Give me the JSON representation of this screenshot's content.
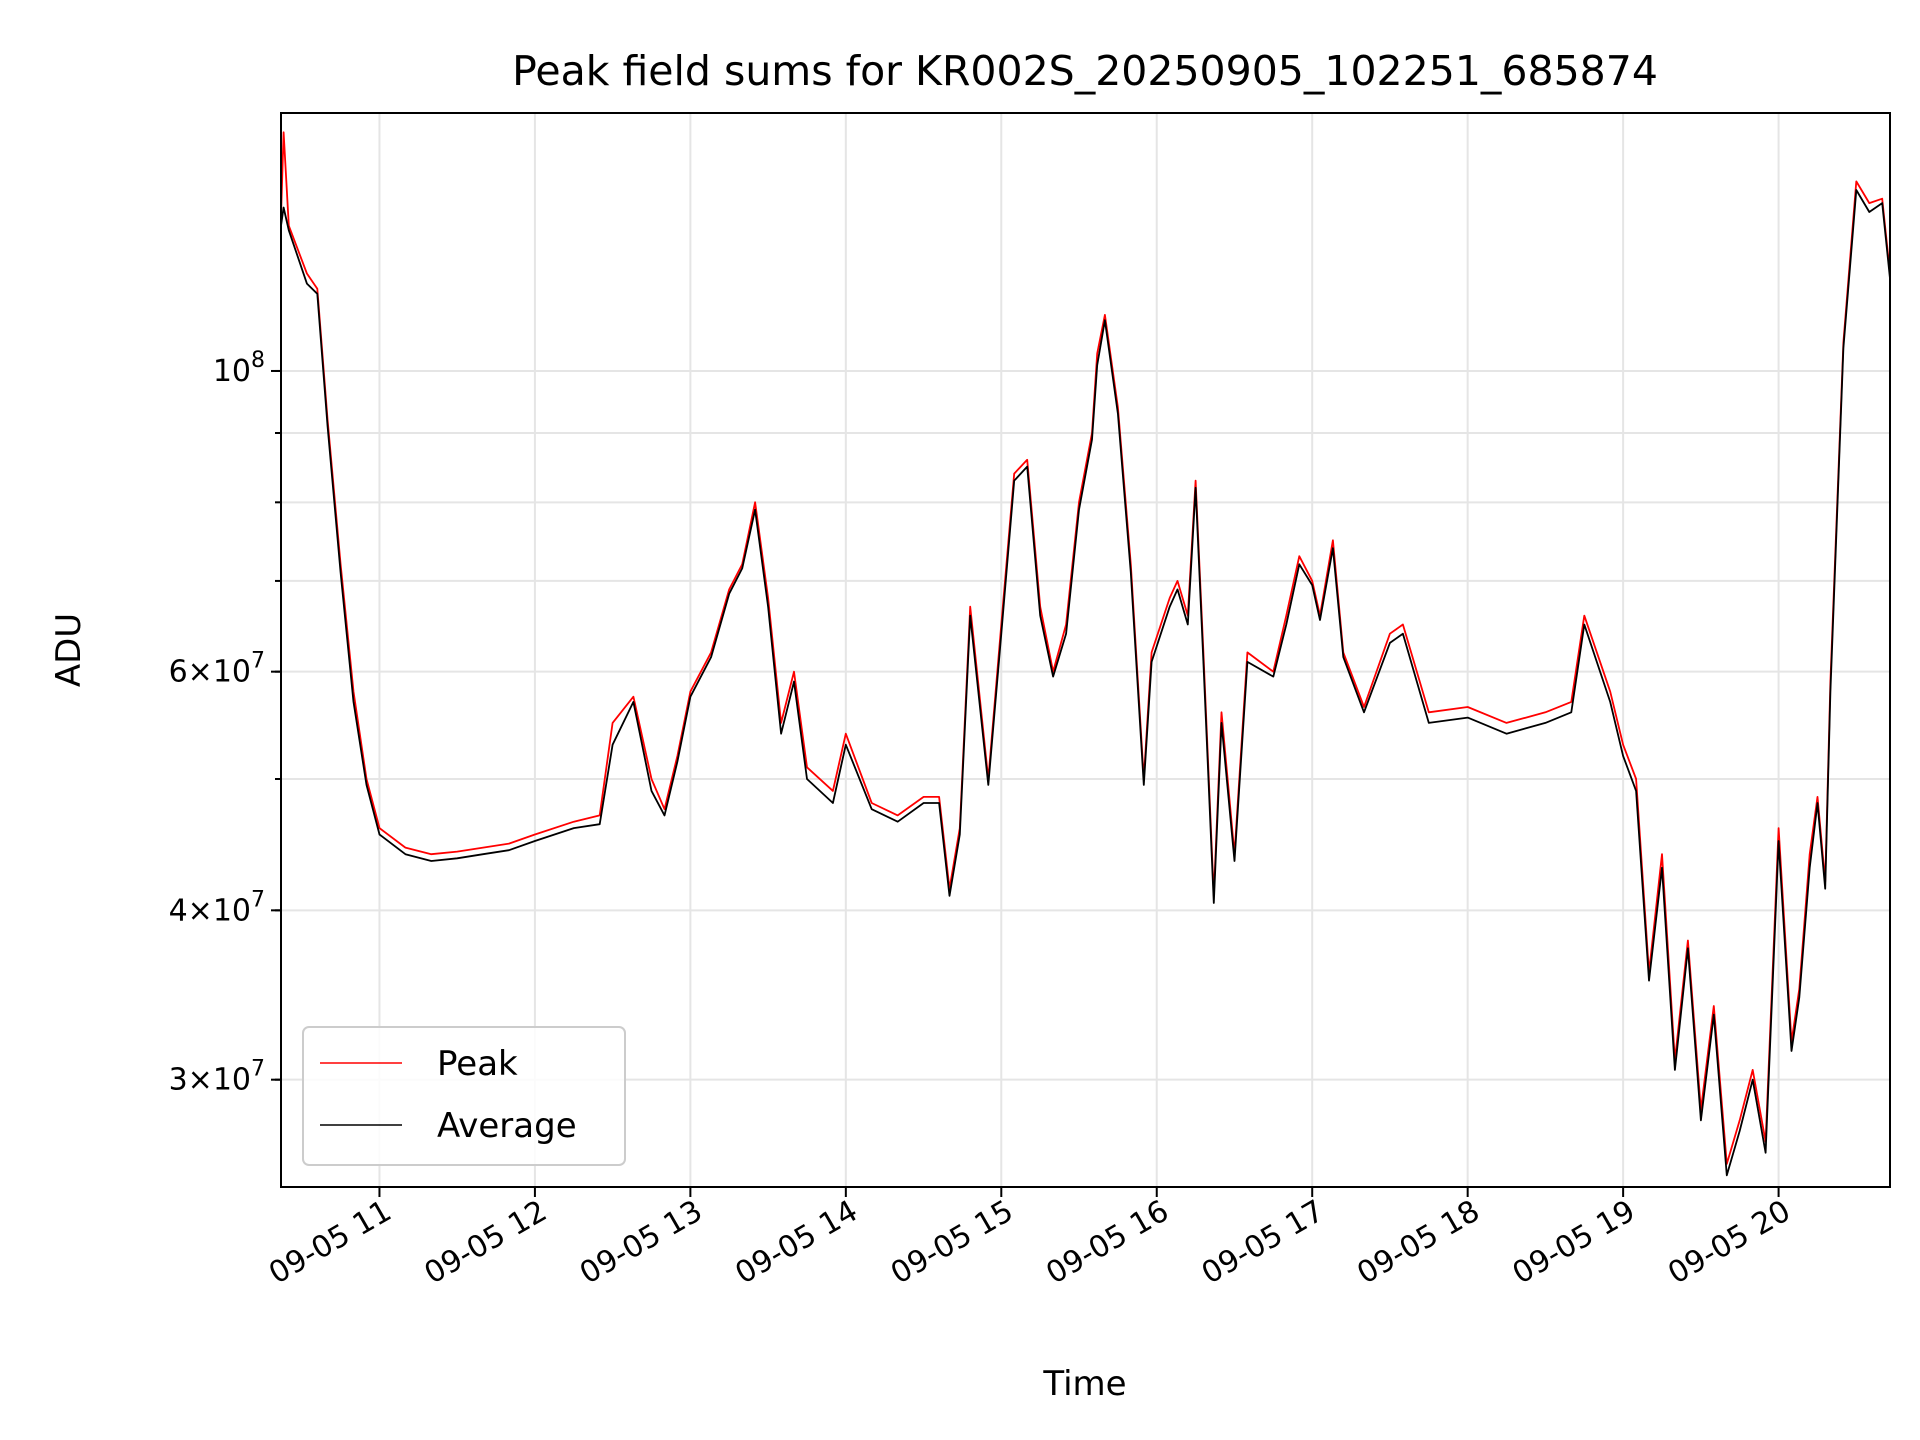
{
  "chart_data": {
    "type": "line",
    "title": "Peak field sums for KR002S_20250905_102251_685874",
    "xlabel": "Time",
    "ylabel": "ADU",
    "y_scale": "log",
    "ylim": [
      25000000,
      155000000
    ],
    "xlim": [
      "2025-09-05 10:22",
      "2025-09-05 20:43"
    ],
    "grid": true,
    "legend_position": "lower-left",
    "x_ticks": [
      {
        "t": "2025-09-05 11:00",
        "label": "09-05 11"
      },
      {
        "t": "2025-09-05 12:00",
        "label": "09-05 12"
      },
      {
        "t": "2025-09-05 13:00",
        "label": "09-05 13"
      },
      {
        "t": "2025-09-05 14:00",
        "label": "09-05 14"
      },
      {
        "t": "2025-09-05 15:00",
        "label": "09-05 15"
      },
      {
        "t": "2025-09-05 16:00",
        "label": "09-05 16"
      },
      {
        "t": "2025-09-05 17:00",
        "label": "09-05 17"
      },
      {
        "t": "2025-09-05 18:00",
        "label": "09-05 18"
      },
      {
        "t": "2025-09-05 19:00",
        "label": "09-05 19"
      },
      {
        "t": "2025-09-05 20:00",
        "label": "09-05 20"
      }
    ],
    "y_ticks": [
      {
        "value": 100000000,
        "base": "10",
        "exp": "8"
      },
      {
        "value": 60000000,
        "mant": "6",
        "base": "10",
        "exp": "7"
      },
      {
        "value": 40000000,
        "mant": "4",
        "base": "10",
        "exp": "7"
      },
      {
        "value": 30000000,
        "mant": "3",
        "base": "10",
        "exp": "7"
      }
    ],
    "series": [
      {
        "name": "Peak",
        "color": "#ff0000",
        "x": [
          "2025-09-05 10:22",
          "2025-09-05 10:23",
          "2025-09-05 10:25",
          "2025-09-05 10:32",
          "2025-09-05 10:36",
          "2025-09-05 10:40",
          "2025-09-05 10:45",
          "2025-09-05 10:50",
          "2025-09-05 10:55",
          "2025-09-05 11:00",
          "2025-09-05 11:10",
          "2025-09-05 11:20",
          "2025-09-05 11:30",
          "2025-09-05 11:40",
          "2025-09-05 11:50",
          "2025-09-05 12:00",
          "2025-09-05 12:15",
          "2025-09-05 12:25",
          "2025-09-05 12:30",
          "2025-09-05 12:38",
          "2025-09-05 12:45",
          "2025-09-05 12:50",
          "2025-09-05 12:55",
          "2025-09-05 13:00",
          "2025-09-05 13:08",
          "2025-09-05 13:15",
          "2025-09-05 13:20",
          "2025-09-05 13:25",
          "2025-09-05 13:30",
          "2025-09-05 13:35",
          "2025-09-05 13:40",
          "2025-09-05 13:45",
          "2025-09-05 13:55",
          "2025-09-05 14:00",
          "2025-09-05 14:10",
          "2025-09-05 14:20",
          "2025-09-05 14:30",
          "2025-09-05 14:36",
          "2025-09-05 14:40",
          "2025-09-05 14:44",
          "2025-09-05 14:48",
          "2025-09-05 14:55",
          "2025-09-05 15:00",
          "2025-09-05 15:05",
          "2025-09-05 15:10",
          "2025-09-05 15:15",
          "2025-09-05 15:20",
          "2025-09-05 15:25",
          "2025-09-05 15:30",
          "2025-09-05 15:35",
          "2025-09-05 15:37",
          "2025-09-05 15:40",
          "2025-09-05 15:45",
          "2025-09-05 15:50",
          "2025-09-05 15:55",
          "2025-09-05 15:58",
          "2025-09-05 16:05",
          "2025-09-05 16:08",
          "2025-09-05 16:12",
          "2025-09-05 16:15",
          "2025-09-05 16:18",
          "2025-09-05 16:22",
          "2025-09-05 16:25",
          "2025-09-05 16:30",
          "2025-09-05 16:35",
          "2025-09-05 16:45",
          "2025-09-05 16:50",
          "2025-09-05 16:55",
          "2025-09-05 17:00",
          "2025-09-05 17:03",
          "2025-09-05 17:08",
          "2025-09-05 17:12",
          "2025-09-05 17:20",
          "2025-09-05 17:30",
          "2025-09-05 17:35",
          "2025-09-05 17:45",
          "2025-09-05 18:00",
          "2025-09-05 18:15",
          "2025-09-05 18:30",
          "2025-09-05 18:40",
          "2025-09-05 18:45",
          "2025-09-05 18:55",
          "2025-09-05 19:00",
          "2025-09-05 19:05",
          "2025-09-05 19:10",
          "2025-09-05 19:15",
          "2025-09-05 19:20",
          "2025-09-05 19:25",
          "2025-09-05 19:30",
          "2025-09-05 19:35",
          "2025-09-05 19:40",
          "2025-09-05 19:45",
          "2025-09-05 19:50",
          "2025-09-05 19:55",
          "2025-09-05 20:00",
          "2025-09-05 20:05",
          "2025-09-05 20:08",
          "2025-09-05 20:12",
          "2025-09-05 20:15",
          "2025-09-05 20:18",
          "2025-09-05 20:20",
          "2025-09-05 20:25",
          "2025-09-05 20:30",
          "2025-09-05 20:35",
          "2025-09-05 20:40",
          "2025-09-05 20:43"
        ],
        "values": [
          130000000,
          150000000,
          128000000,
          118000000,
          115000000,
          92000000,
          72000000,
          58000000,
          50000000,
          46000000,
          44500000,
          44000000,
          44200000,
          44500000,
          44800000,
          45500000,
          46500000,
          47000000,
          55000000,
          57500000,
          50000000,
          47500000,
          52000000,
          58000000,
          62000000,
          69000000,
          72000000,
          80000000,
          68000000,
          55000000,
          60000000,
          51000000,
          49000000,
          54000000,
          48000000,
          47000000,
          48500000,
          48500000,
          41500000,
          46000000,
          67000000,
          50000000,
          65000000,
          84000000,
          86000000,
          67000000,
          60000000,
          65000000,
          80000000,
          90000000,
          103000000,
          110000000,
          94000000,
          72000000,
          50000000,
          62000000,
          68000000,
          70000000,
          66000000,
          83000000,
          62000000,
          41000000,
          56000000,
          44000000,
          62000000,
          60000000,
          66000000,
          73000000,
          70000000,
          66000000,
          75000000,
          62000000,
          56500000,
          64000000,
          65000000,
          56000000,
          56500000,
          55000000,
          56000000,
          57000000,
          66000000,
          58000000,
          53000000,
          50000000,
          36000000,
          44000000,
          31000000,
          38000000,
          28500000,
          34000000,
          26000000,
          28000000,
          30500000,
          27000000,
          46000000,
          32000000,
          35000000,
          44000000,
          48500000,
          42000000,
          59000000,
          105000000,
          138000000,
          133000000,
          134000000,
          118000000
        ]
      },
      {
        "name": "Average",
        "color": "#000000",
        "x": [
          "2025-09-05 10:22",
          "2025-09-05 10:23",
          "2025-09-05 10:25",
          "2025-09-05 10:32",
          "2025-09-05 10:36",
          "2025-09-05 10:40",
          "2025-09-05 10:45",
          "2025-09-05 10:50",
          "2025-09-05 10:55",
          "2025-09-05 11:00",
          "2025-09-05 11:10",
          "2025-09-05 11:20",
          "2025-09-05 11:30",
          "2025-09-05 11:40",
          "2025-09-05 11:50",
          "2025-09-05 12:00",
          "2025-09-05 12:15",
          "2025-09-05 12:25",
          "2025-09-05 12:30",
          "2025-09-05 12:38",
          "2025-09-05 12:45",
          "2025-09-05 12:50",
          "2025-09-05 12:55",
          "2025-09-05 13:00",
          "2025-09-05 13:08",
          "2025-09-05 13:15",
          "2025-09-05 13:20",
          "2025-09-05 13:25",
          "2025-09-05 13:30",
          "2025-09-05 13:35",
          "2025-09-05 13:40",
          "2025-09-05 13:45",
          "2025-09-05 13:55",
          "2025-09-05 14:00",
          "2025-09-05 14:10",
          "2025-09-05 14:20",
          "2025-09-05 14:30",
          "2025-09-05 14:36",
          "2025-09-05 14:40",
          "2025-09-05 14:44",
          "2025-09-05 14:48",
          "2025-09-05 14:55",
          "2025-09-05 15:00",
          "2025-09-05 15:05",
          "2025-09-05 15:10",
          "2025-09-05 15:15",
          "2025-09-05 15:20",
          "2025-09-05 15:25",
          "2025-09-05 15:30",
          "2025-09-05 15:35",
          "2025-09-05 15:37",
          "2025-09-05 15:40",
          "2025-09-05 15:45",
          "2025-09-05 15:50",
          "2025-09-05 15:55",
          "2025-09-05 15:58",
          "2025-09-05 16:05",
          "2025-09-05 16:08",
          "2025-09-05 16:12",
          "2025-09-05 16:15",
          "2025-09-05 16:18",
          "2025-09-05 16:22",
          "2025-09-05 16:25",
          "2025-09-05 16:30",
          "2025-09-05 16:35",
          "2025-09-05 16:45",
          "2025-09-05 16:50",
          "2025-09-05 16:55",
          "2025-09-05 17:00",
          "2025-09-05 17:03",
          "2025-09-05 17:08",
          "2025-09-05 17:12",
          "2025-09-05 17:20",
          "2025-09-05 17:30",
          "2025-09-05 17:35",
          "2025-09-05 17:45",
          "2025-09-05 18:00",
          "2025-09-05 18:15",
          "2025-09-05 18:30",
          "2025-09-05 18:40",
          "2025-09-05 18:45",
          "2025-09-05 18:55",
          "2025-09-05 19:00",
          "2025-09-05 19:05",
          "2025-09-05 19:10",
          "2025-09-05 19:15",
          "2025-09-05 19:20",
          "2025-09-05 19:25",
          "2025-09-05 19:30",
          "2025-09-05 19:35",
          "2025-09-05 19:40",
          "2025-09-05 19:45",
          "2025-09-05 19:50",
          "2025-09-05 19:55",
          "2025-09-05 20:00",
          "2025-09-05 20:05",
          "2025-09-05 20:08",
          "2025-09-05 20:12",
          "2025-09-05 20:15",
          "2025-09-05 20:18",
          "2025-09-05 20:20",
          "2025-09-05 20:25",
          "2025-09-05 20:30",
          "2025-09-05 20:35",
          "2025-09-05 20:40",
          "2025-09-05 20:43"
        ],
        "values": [
          128000000,
          132000000,
          127000000,
          116000000,
          114000000,
          91000000,
          71000000,
          57000000,
          49500000,
          45500000,
          44000000,
          43500000,
          43700000,
          44000000,
          44300000,
          45000000,
          46000000,
          46300000,
          53000000,
          57000000,
          49000000,
          47000000,
          51500000,
          57500000,
          61500000,
          68500000,
          71500000,
          79000000,
          67000000,
          54000000,
          59000000,
          50000000,
          48000000,
          53000000,
          47500000,
          46500000,
          48000000,
          48000000,
          41000000,
          45500000,
          66000000,
          49500000,
          64000000,
          83000000,
          85000000,
          66000000,
          59500000,
          64000000,
          79000000,
          89000000,
          101000000,
          109000000,
          93000000,
          71000000,
          49500000,
          61000000,
          67000000,
          69000000,
          65000000,
          82000000,
          61000000,
          40500000,
          55000000,
          43500000,
          61000000,
          59500000,
          65000000,
          72000000,
          69500000,
          65500000,
          74000000,
          61500000,
          56000000,
          63000000,
          64000000,
          55000000,
          55500000,
          54000000,
          55000000,
          56000000,
          65000000,
          57000000,
          52000000,
          49000000,
          35500000,
          43000000,
          30500000,
          37500000,
          28000000,
          33500000,
          25500000,
          27500000,
          30000000,
          26500000,
          45000000,
          31500000,
          34500000,
          43000000,
          48000000,
          41500000,
          58000000,
          104000000,
          136000000,
          131000000,
          133000000,
          117000000
        ]
      }
    ]
  }
}
